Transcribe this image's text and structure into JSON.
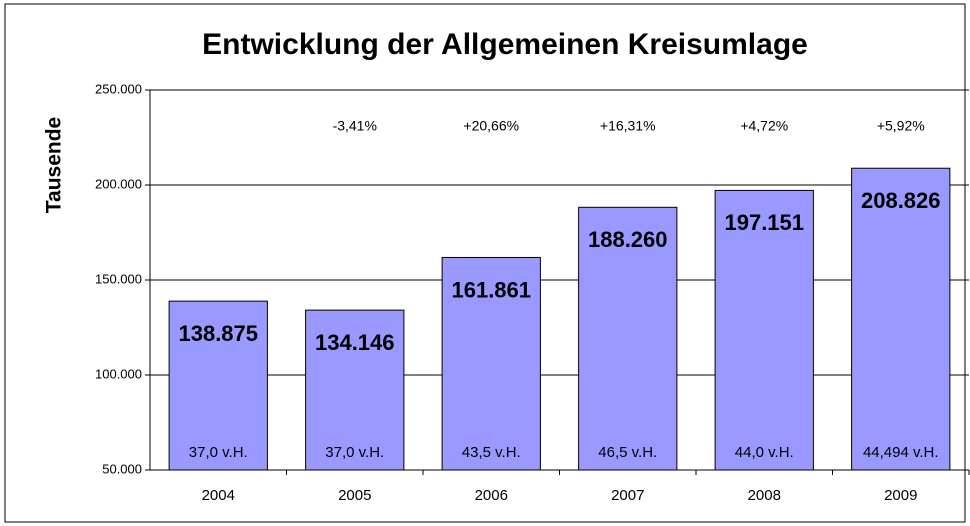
{
  "chart_data": {
    "type": "bar",
    "title": "Entwicklung der Allgemeinen Kreisumlage",
    "y_label": "Tausende",
    "categories": [
      "2004",
      "2005",
      "2006",
      "2007",
      "2008",
      "2009"
    ],
    "values": [
      138875,
      134146,
      161861,
      188260,
      197151,
      208826
    ],
    "value_labels": [
      "138.875",
      "134.146",
      "161.861",
      "188.260",
      "197.151",
      "208.826"
    ],
    "change_labels": [
      null,
      "-3,41%",
      "+20,66%",
      "+16,31%",
      "+4,72%",
      "+5,92%"
    ],
    "rate_labels": [
      "37,0 v.H.",
      "37,0 v.H.",
      "43,5 v.H.",
      "46,5 v.H.",
      "44,0 v.H.",
      "44,494 v.H."
    ],
    "color": "#9999ff",
    "ylim": [
      50000,
      250000
    ],
    "yticks": [
      {
        "value": 50000,
        "label": "50.000"
      },
      {
        "value": 100000,
        "label": "100.000"
      },
      {
        "value": 150000,
        "label": "150.000"
      },
      {
        "value": 200000,
        "label": "200.000"
      },
      {
        "value": 250000,
        "label": "250.000"
      }
    ],
    "grid": true
  }
}
